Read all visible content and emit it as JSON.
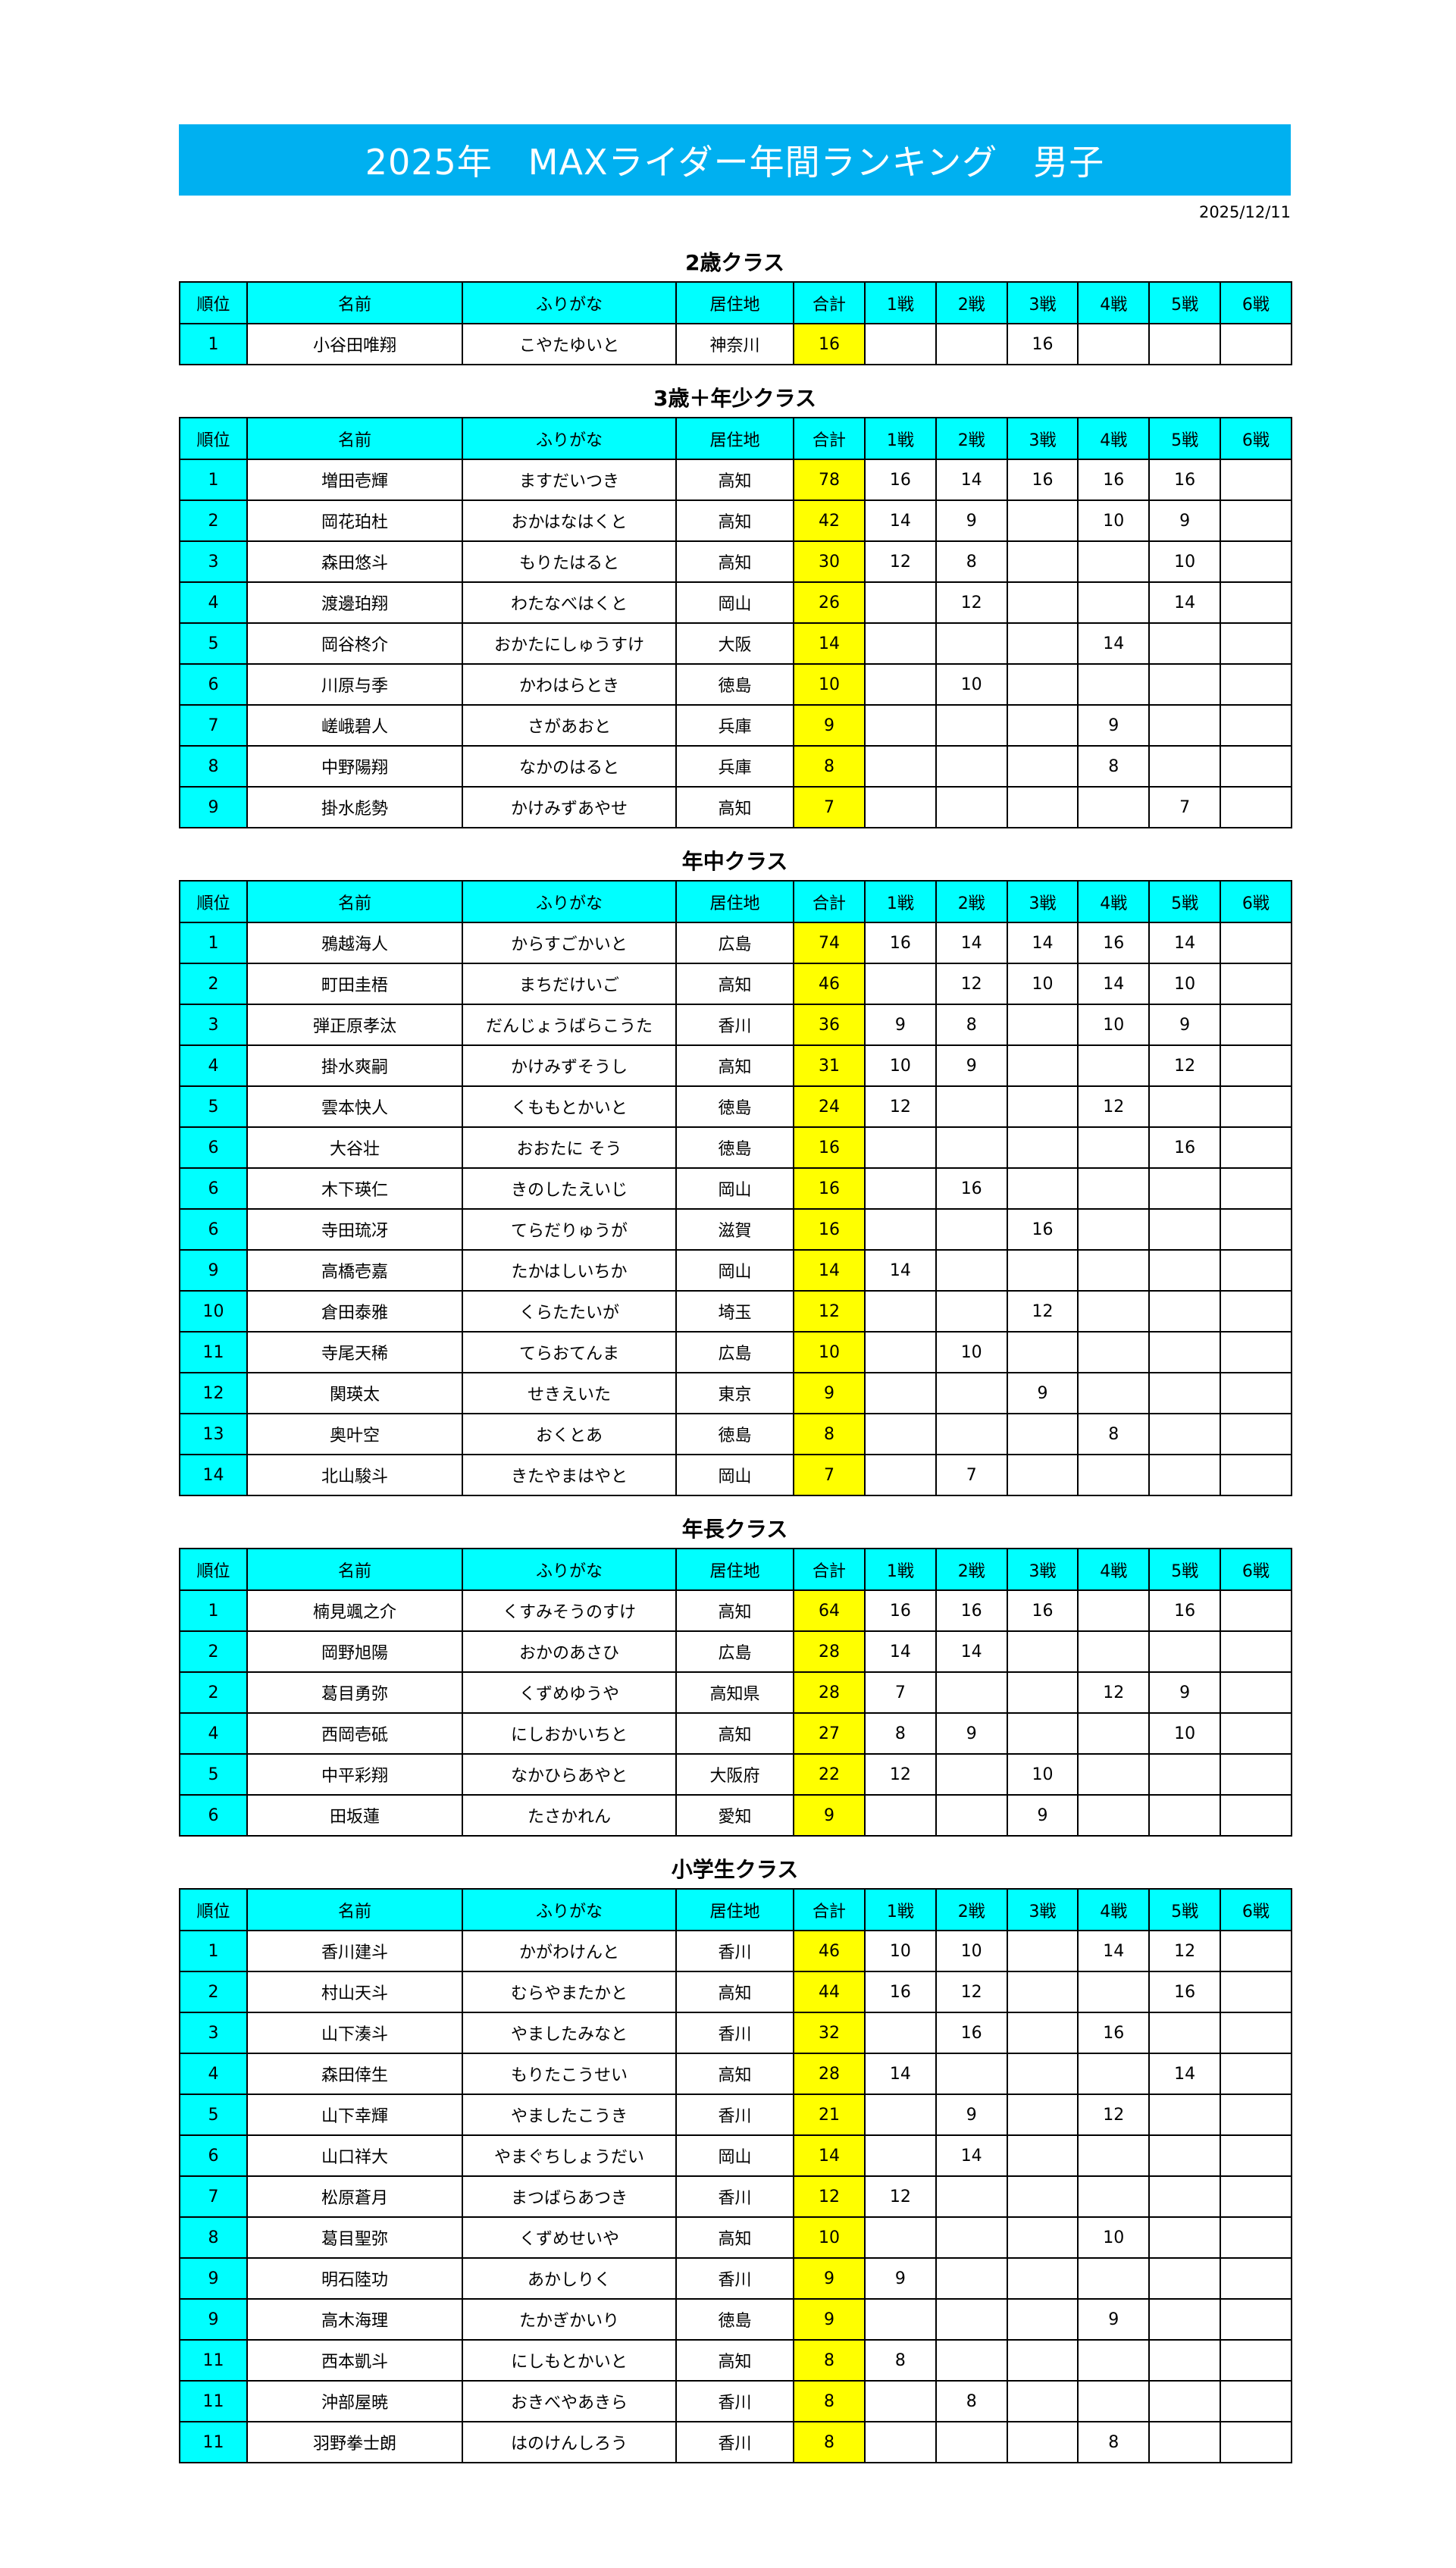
{
  "title": "2025年　MAXライダー年間ランキング　男子",
  "date": "2025/12/11",
  "colors": {
    "title_bar": "#00B0F0",
    "header": "#00FFFF",
    "rank_column": "#00FFFF",
    "total_column": "#FFFF00"
  },
  "columns": [
    "順位",
    "名前",
    "ふりがな",
    "居住地",
    "合計",
    "1戦",
    "2戦",
    "3戦",
    "4戦",
    "5戦",
    "6戦"
  ],
  "classes": [
    {
      "title": "2歳クラス",
      "rows": [
        [
          "1",
          "小谷田唯翔",
          "こやたゆいと",
          "神奈川",
          "16",
          "",
          "",
          "16",
          "",
          "",
          ""
        ]
      ]
    },
    {
      "title": "3歳＋年少クラス",
      "rows": [
        [
          "1",
          "増田壱輝",
          "ますだいつき",
          "高知",
          "78",
          "16",
          "14",
          "16",
          "16",
          "16",
          ""
        ],
        [
          "2",
          "岡花珀杜",
          "おかはなはくと",
          "高知",
          "42",
          "14",
          "9",
          "",
          "10",
          "9",
          ""
        ],
        [
          "3",
          "森田悠斗",
          "もりたはると",
          "高知",
          "30",
          "12",
          "8",
          "",
          "",
          "10",
          ""
        ],
        [
          "4",
          "渡邊珀翔",
          "わたなべはくと",
          "岡山",
          "26",
          "",
          "12",
          "",
          "",
          "14",
          ""
        ],
        [
          "5",
          "岡谷柊介",
          "おかたにしゅうすけ",
          "大阪",
          "14",
          "",
          "",
          "",
          "14",
          "",
          ""
        ],
        [
          "6",
          "川原与季",
          "かわはらとき",
          "徳島",
          "10",
          "",
          "10",
          "",
          "",
          "",
          ""
        ],
        [
          "7",
          "嵯峨碧人",
          "さがあおと",
          "兵庫",
          "9",
          "",
          "",
          "",
          "9",
          "",
          ""
        ],
        [
          "8",
          "中野陽翔",
          "なかのはると",
          "兵庫",
          "8",
          "",
          "",
          "",
          "8",
          "",
          ""
        ],
        [
          "9",
          "掛水彪勢",
          "かけみずあやせ",
          "高知",
          "7",
          "",
          "",
          "",
          "",
          "7",
          ""
        ]
      ]
    },
    {
      "title": "年中クラス",
      "rows": [
        [
          "1",
          "鴉越海人",
          "からすごかいと",
          "広島",
          "74",
          "16",
          "14",
          "14",
          "16",
          "14",
          ""
        ],
        [
          "2",
          "町田圭梧",
          "まちだけいご",
          "高知",
          "46",
          "",
          "12",
          "10",
          "14",
          "10",
          ""
        ],
        [
          "3",
          "弾正原孝汰",
          "だんじょうばらこうた",
          "香川",
          "36",
          "9",
          "8",
          "",
          "10",
          "9",
          ""
        ],
        [
          "4",
          "掛水爽嗣",
          "かけみずそうし",
          "高知",
          "31",
          "10",
          "9",
          "",
          "",
          "12",
          ""
        ],
        [
          "5",
          "雲本快人",
          "くももとかいと",
          "徳島",
          "24",
          "12",
          "",
          "",
          "12",
          "",
          ""
        ],
        [
          "6",
          "大谷壮",
          "おおたに そう",
          "徳島",
          "16",
          "",
          "",
          "",
          "",
          "16",
          ""
        ],
        [
          "6",
          "木下瑛仁",
          "きのしたえいじ",
          "岡山",
          "16",
          "",
          "16",
          "",
          "",
          "",
          ""
        ],
        [
          "6",
          "寺田琉冴",
          "てらだりゅうが",
          "滋賀",
          "16",
          "",
          "",
          "16",
          "",
          "",
          ""
        ],
        [
          "9",
          "高橋壱嘉",
          "たかはしいちか",
          "岡山",
          "14",
          "14",
          "",
          "",
          "",
          "",
          ""
        ],
        [
          "10",
          "倉田泰雅",
          "くらたたいが",
          "埼玉",
          "12",
          "",
          "",
          "12",
          "",
          "",
          ""
        ],
        [
          "11",
          "寺尾天稀",
          "てらおてんま",
          "広島",
          "10",
          "",
          "10",
          "",
          "",
          "",
          ""
        ],
        [
          "12",
          "関瑛太",
          "せきえいた",
          "東京",
          "9",
          "",
          "",
          "9",
          "",
          "",
          ""
        ],
        [
          "13",
          "奥叶空",
          "おくとあ",
          "徳島",
          "8",
          "",
          "",
          "",
          "8",
          "",
          ""
        ],
        [
          "14",
          "北山駿斗",
          "きたやまはやと",
          "岡山",
          "7",
          "",
          "7",
          "",
          "",
          "",
          ""
        ]
      ]
    },
    {
      "title": "年長クラス",
      "rows": [
        [
          "1",
          "楠見颯之介",
          "くすみそうのすけ",
          "高知",
          "64",
          "16",
          "16",
          "16",
          "",
          "16",
          ""
        ],
        [
          "2",
          "岡野旭陽",
          "おかのあさひ",
          "広島",
          "28",
          "14",
          "14",
          "",
          "",
          "",
          ""
        ],
        [
          "2",
          "葛目勇弥",
          "くずめゆうや",
          "高知県",
          "28",
          "7",
          "",
          "",
          "12",
          "9",
          ""
        ],
        [
          "4",
          "西岡壱砥",
          "にしおかいちと",
          "高知",
          "27",
          "8",
          "9",
          "",
          "",
          "10",
          ""
        ],
        [
          "5",
          "中平彩翔",
          "なかひらあやと",
          "大阪府",
          "22",
          "12",
          "",
          "10",
          "",
          "",
          ""
        ],
        [
          "6",
          "田坂蓮",
          "たさかれん",
          "愛知",
          "9",
          "",
          "",
          "9",
          "",
          "",
          ""
        ]
      ]
    },
    {
      "title": "小学生クラス",
      "rows": [
        [
          "1",
          "香川建斗",
          "かがわけんと",
          "香川",
          "46",
          "10",
          "10",
          "",
          "14",
          "12",
          ""
        ],
        [
          "2",
          "村山天斗",
          "むらやまたかと",
          "高知",
          "44",
          "16",
          "12",
          "",
          "",
          "16",
          ""
        ],
        [
          "3",
          "山下湊斗",
          "やましたみなと",
          "香川",
          "32",
          "",
          "16",
          "",
          "16",
          "",
          ""
        ],
        [
          "4",
          "森田倖生",
          "もりたこうせい",
          "高知",
          "28",
          "14",
          "",
          "",
          "",
          "14",
          ""
        ],
        [
          "5",
          "山下幸輝",
          "やましたこうき",
          "香川",
          "21",
          "",
          "9",
          "",
          "12",
          "",
          ""
        ],
        [
          "6",
          "山口祥大",
          "やまぐちしょうだい",
          "岡山",
          "14",
          "",
          "14",
          "",
          "",
          "",
          ""
        ],
        [
          "7",
          "松原蒼月",
          "まつばらあつき",
          "香川",
          "12",
          "12",
          "",
          "",
          "",
          "",
          ""
        ],
        [
          "8",
          "葛目聖弥",
          "くずめせいや",
          "高知",
          "10",
          "",
          "",
          "",
          "10",
          "",
          ""
        ],
        [
          "9",
          "明石陸功",
          "あかしりく",
          "香川",
          "9",
          "9",
          "",
          "",
          "",
          "",
          ""
        ],
        [
          "9",
          "高木海理",
          "たかぎかいり",
          "徳島",
          "9",
          "",
          "",
          "",
          "9",
          "",
          ""
        ],
        [
          "11",
          "西本凱斗",
          "にしもとかいと",
          "高知",
          "8",
          "8",
          "",
          "",
          "",
          "",
          ""
        ],
        [
          "11",
          "沖部屋暁",
          "おきべやあきら",
          "香川",
          "8",
          "",
          "8",
          "",
          "",
          "",
          ""
        ],
        [
          "11",
          "羽野拳士朗",
          "はのけんしろう",
          "香川",
          "8",
          "",
          "",
          "",
          "8",
          "",
          ""
        ]
      ]
    }
  ]
}
